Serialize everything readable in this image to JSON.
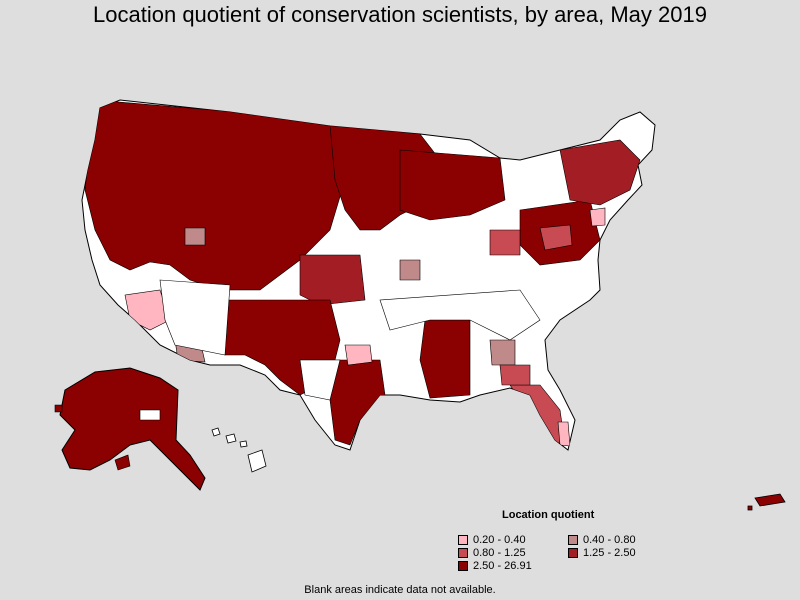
{
  "title": "Location quotient of conservation scientists, by area, May 2019",
  "legend": {
    "title": "Location quotient",
    "items": [
      {
        "label": "0.20 - 0.40",
        "color": "#ffb6c1"
      },
      {
        "label": "0.40 - 0.80",
        "color": "#c08a8a"
      },
      {
        "label": "0.80 - 1.25",
        "color": "#c84a52"
      },
      {
        "label": "1.25 - 2.50",
        "color": "#a31d24"
      },
      {
        "label": "2.50 - 26.91",
        "color": "#8b0000"
      }
    ]
  },
  "footnote": "Blank areas indicate data not available.",
  "colors": {
    "background": "#dedede",
    "no_data": "#ffffff",
    "border": "#000000"
  }
}
